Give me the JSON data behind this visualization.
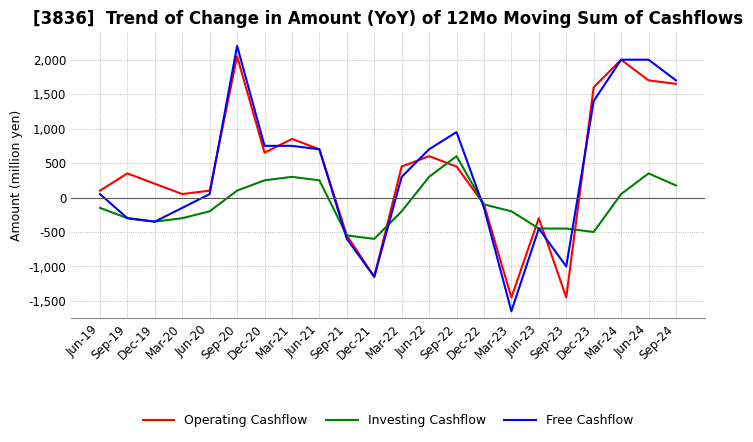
{
  "title": "[3836]  Trend of Change in Amount (YoY) of 12Mo Moving Sum of Cashflows",
  "ylabel": "Amount (million yen)",
  "x_labels": [
    "Jun-19",
    "Sep-19",
    "Dec-19",
    "Mar-20",
    "Jun-20",
    "Sep-20",
    "Dec-20",
    "Mar-21",
    "Jun-21",
    "Sep-21",
    "Dec-21",
    "Mar-22",
    "Jun-22",
    "Sep-22",
    "Dec-22",
    "Mar-23",
    "Jun-23",
    "Sep-23",
    "Dec-23",
    "Mar-24",
    "Jun-24",
    "Sep-24"
  ],
  "operating": [
    100,
    350,
    200,
    50,
    100,
    2050,
    650,
    850,
    700,
    -550,
    -1150,
    450,
    600,
    450,
    -100,
    -1450,
    -300,
    -1450,
    1600,
    2000,
    1700,
    1650
  ],
  "investing": [
    -150,
    -300,
    -350,
    -300,
    -200,
    100,
    250,
    300,
    250,
    -550,
    -600,
    -200,
    300,
    600,
    -100,
    -200,
    -450,
    -450,
    -500,
    50,
    350,
    175
  ],
  "free": [
    50,
    -300,
    -350,
    -150,
    50,
    2200,
    750,
    750,
    700,
    -600,
    -1150,
    300,
    700,
    950,
    -150,
    -1650,
    -450,
    -1000,
    1400,
    2000,
    2000,
    1700
  ],
  "ylim": [
    -1750,
    2400
  ],
  "yticks": [
    -1500,
    -1000,
    -500,
    0,
    500,
    1000,
    1500,
    2000
  ],
  "colors": {
    "operating": "#FF0000",
    "investing": "#008000",
    "free": "#0000FF"
  },
  "legend_labels": [
    "Operating Cashflow",
    "Investing Cashflow",
    "Free Cashflow"
  ],
  "background_color": "#FFFFFF",
  "grid_color": "#AAAAAA",
  "title_fontsize": 12,
  "label_fontsize": 9,
  "tick_fontsize": 8.5
}
